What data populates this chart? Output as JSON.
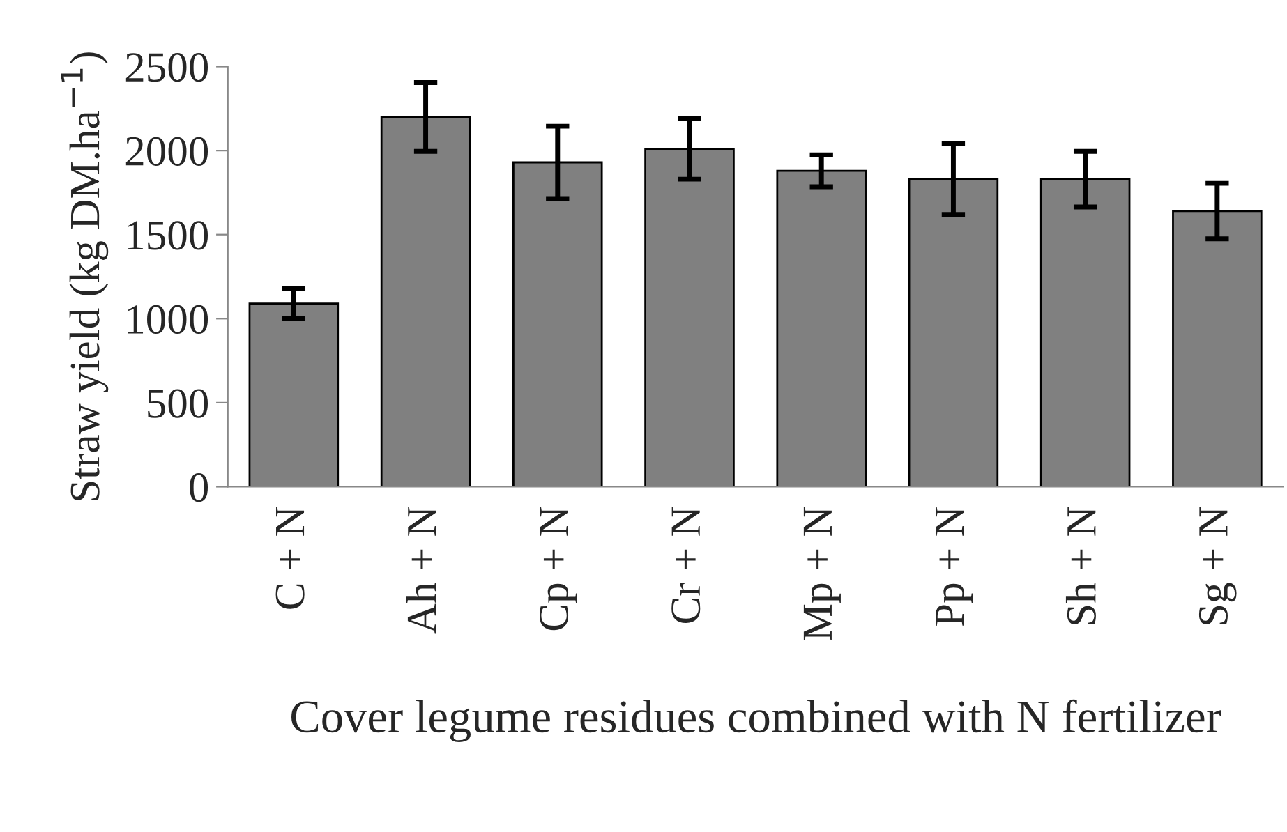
{
  "chart_data": {
    "type": "bar",
    "xlabel": "Cover legume residues combined with N fertilizer",
    "ylabel": "Straw yield (kg DM.ha$^{−1}$)",
    "categories": [
      "C + N",
      "Ah + N",
      "Cp + N",
      "Cr + N",
      "Mp + N",
      "Pp + N",
      "Sh + N",
      "Sg + N"
    ],
    "values": [
      1090,
      2200,
      1930,
      2010,
      1880,
      1830,
      1830,
      1640
    ],
    "errors": [
      90,
      205,
      215,
      180,
      95,
      210,
      165,
      165
    ],
    "color": "#808080",
    "ylim": [
      0,
      2500
    ],
    "yticks": [
      0,
      500,
      1000,
      1500,
      2000,
      2500
    ],
    "grid": false,
    "legend": false
  }
}
